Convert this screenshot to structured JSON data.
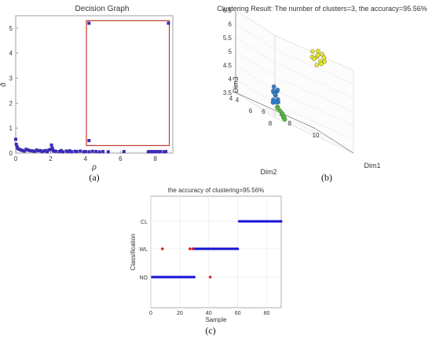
{
  "chart_data": [
    {
      "type": "scatter",
      "title": "Decision Graph",
      "xlabel": "ρ",
      "ylabel": "δ",
      "panel_label": "(a)",
      "xlim": [
        0,
        9
      ],
      "ylim": [
        0,
        5.5
      ],
      "xticks": [
        0,
        2,
        4,
        6,
        8
      ],
      "yticks": [
        0,
        1,
        2,
        3,
        4,
        5
      ],
      "grid": false,
      "colors": {
        "points": "#3b2bb5",
        "highlight_box": "#c0392b"
      },
      "highlight_box": {
        "x": [
          4.05,
          8.8
        ],
        "y": [
          0.3,
          5.3
        ]
      },
      "points": [
        [
          0.0,
          0.55
        ],
        [
          0.03,
          0.35
        ],
        [
          0.08,
          0.25
        ],
        [
          0.12,
          0.18
        ],
        [
          0.2,
          0.15
        ],
        [
          0.3,
          0.12
        ],
        [
          0.4,
          0.1
        ],
        [
          0.5,
          0.08
        ],
        [
          0.6,
          0.15
        ],
        [
          0.7,
          0.12
        ],
        [
          0.8,
          0.1
        ],
        [
          0.9,
          0.09
        ],
        [
          1.0,
          0.08
        ],
        [
          1.1,
          0.07
        ],
        [
          1.2,
          0.12
        ],
        [
          1.3,
          0.09
        ],
        [
          1.4,
          0.1
        ],
        [
          1.5,
          0.06
        ],
        [
          1.6,
          0.08
        ],
        [
          1.7,
          0.1
        ],
        [
          1.8,
          0.05
        ],
        [
          1.9,
          0.12
        ],
        [
          2.0,
          0.15
        ],
        [
          2.05,
          0.32
        ],
        [
          2.1,
          0.2
        ],
        [
          2.15,
          0.1
        ],
        [
          2.2,
          0.08
        ],
        [
          2.3,
          0.07
        ],
        [
          2.5,
          0.06
        ],
        [
          2.6,
          0.1
        ],
        [
          2.7,
          0.05
        ],
        [
          2.9,
          0.08
        ],
        [
          3.0,
          0.06
        ],
        [
          3.1,
          0.09
        ],
        [
          3.2,
          0.05
        ],
        [
          3.4,
          0.07
        ],
        [
          3.5,
          0.06
        ],
        [
          3.7,
          0.08
        ],
        [
          3.9,
          0.05
        ],
        [
          4.0,
          0.06
        ],
        [
          4.2,
          0.05
        ],
        [
          4.4,
          0.07
        ],
        [
          4.6,
          0.06
        ],
        [
          4.8,
          0.05
        ],
        [
          5.0,
          0.06
        ],
        [
          5.3,
          0.05
        ],
        [
          6.2,
          0.06
        ],
        [
          7.6,
          0.05
        ],
        [
          7.7,
          0.06
        ],
        [
          7.8,
          0.05
        ],
        [
          7.9,
          0.06
        ],
        [
          8.0,
          0.05
        ],
        [
          8.1,
          0.06
        ],
        [
          8.2,
          0.05
        ],
        [
          8.3,
          0.06
        ],
        [
          8.5,
          0.05
        ],
        [
          8.6,
          0.06
        ],
        [
          4.2,
          0.5
        ],
        [
          4.2,
          5.2
        ],
        [
          8.75,
          5.2
        ]
      ]
    },
    {
      "type": "scatter",
      "title": "Clustering Result: The number of clusters=3, the accuracy=95.56%",
      "xlabel": "Dim1",
      "ylabel": "Dim2",
      "zlabel": "Dim3",
      "panel_label": "(b)",
      "xlim": [
        4,
        10
      ],
      "ylim": [
        4,
        8
      ],
      "zlim": [
        3.5,
        6.5
      ],
      "xticks": [
        4,
        6,
        8,
        10
      ],
      "yticks": [
        4,
        6,
        8
      ],
      "zticks": [
        3.5,
        4,
        4.5,
        5,
        5.5,
        6,
        6.5
      ],
      "series": [
        {
          "color": "#e8e825",
          "points": [
            [
              8.3,
              6.1,
              6.4
            ],
            [
              8.5,
              6.3,
              6.3
            ],
            [
              8.8,
              6.0,
              6.5
            ],
            [
              8.6,
              6.5,
              6.2
            ],
            [
              8.9,
              6.2,
              6.1
            ],
            [
              9.1,
              6.0,
              6.45
            ],
            [
              8.4,
              6.4,
              6.0
            ],
            [
              8.7,
              6.1,
              6.35
            ],
            [
              9.0,
              6.4,
              6.25
            ],
            [
              8.2,
              6.2,
              6.2
            ],
            [
              8.8,
              6.6,
              6.4
            ],
            [
              8.5,
              6.0,
              6.15
            ]
          ]
        },
        {
          "color": "#2f7fd0",
          "points": [
            [
              5.2,
              6.3,
              4.5
            ],
            [
              5.3,
              6.5,
              4.4
            ],
            [
              5.4,
              6.2,
              4.2
            ],
            [
              5.1,
              6.4,
              4.3
            ],
            [
              5.5,
              6.3,
              4.1
            ],
            [
              5.3,
              6.1,
              4.0
            ],
            [
              5.2,
              6.2,
              3.9
            ],
            [
              5.4,
              6.4,
              4.45
            ],
            [
              5.6,
              6.2,
              4.0
            ],
            [
              5.0,
              6.5,
              4.35
            ],
            [
              5.3,
              6.3,
              4.25
            ],
            [
              5.5,
              6.1,
              3.95
            ]
          ]
        },
        {
          "color": "#4fbf3a",
          "points": [
            [
              5.7,
              6.0,
              3.8
            ],
            [
              5.9,
              6.0,
              3.7
            ],
            [
              6.1,
              5.9,
              3.6
            ],
            [
              6.3,
              5.8,
              3.5
            ],
            [
              6.0,
              6.1,
              3.65
            ],
            [
              5.8,
              5.9,
              3.75
            ],
            [
              6.2,
              6.0,
              3.55
            ],
            [
              6.4,
              5.8,
              3.45
            ]
          ]
        }
      ]
    },
    {
      "type": "scatter",
      "title": "the accuracy of clustering=95.56%",
      "xlabel": "Sample",
      "ylabel": "Classification",
      "panel_label": "(c)",
      "xlim": [
        0,
        90
      ],
      "xticks": [
        0,
        20,
        40,
        60,
        80
      ],
      "categories": [
        "NO",
        "WL",
        "CL"
      ],
      "grid": true,
      "series": [
        {
          "color": "#1a14d6",
          "runs": [
            {
              "class": "NO",
              "from": 1,
              "to": 30
            },
            {
              "class": "WL",
              "from": 30,
              "to": 60
            },
            {
              "class": "CL",
              "from": 61,
              "to": 90
            }
          ]
        },
        {
          "color": "#d42020",
          "points": [
            [
              8,
              "WL"
            ],
            [
              27,
              "WL"
            ],
            [
              29,
              "WL"
            ],
            [
              41,
              "NO"
            ]
          ]
        }
      ]
    }
  ]
}
